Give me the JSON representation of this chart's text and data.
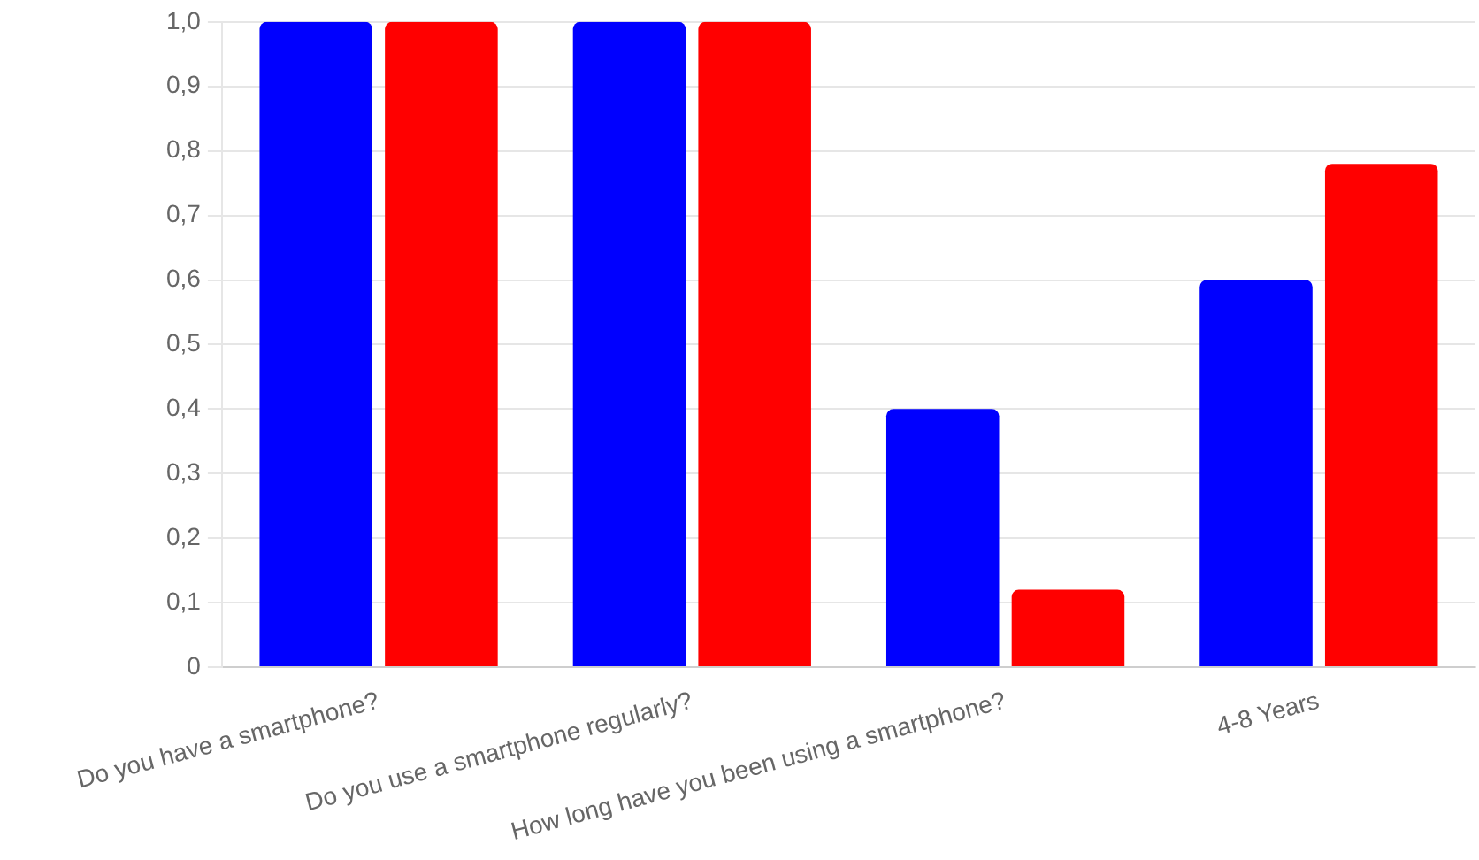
{
  "chart_data": {
    "type": "bar",
    "categories": [
      "Do you have a smartphone?",
      "Do you use a smartphone regularly?",
      "How long have you been using a smartphone?",
      "4-8 Years"
    ],
    "series": [
      {
        "color": "#0000ff",
        "values": [
          1,
          1,
          0.4,
          0.6
        ]
      },
      {
        "color": "#ff0000",
        "values": [
          1,
          1,
          0.12,
          0.78
        ]
      }
    ],
    "ylim": [
      0,
      1
    ],
    "yticks": [
      0,
      {
        "value": 0.1,
        "label": "0,1"
      },
      {
        "value": 0.2,
        "label": "0,2"
      },
      {
        "value": 0.3,
        "label": "0,3"
      },
      {
        "value": 0.4,
        "label": "0,4"
      },
      {
        "value": 0.5,
        "label": "0,5"
      },
      {
        "value": 0.6,
        "label": "0,6"
      },
      {
        "value": 0.7,
        "label": "0,7"
      },
      {
        "value": 0.8,
        "label": "0,8"
      },
      {
        "value": 0.9,
        "label": "0,9"
      },
      {
        "value": 1,
        "label": "1,0"
      }
    ],
    "grid": "y",
    "legend": false
  }
}
